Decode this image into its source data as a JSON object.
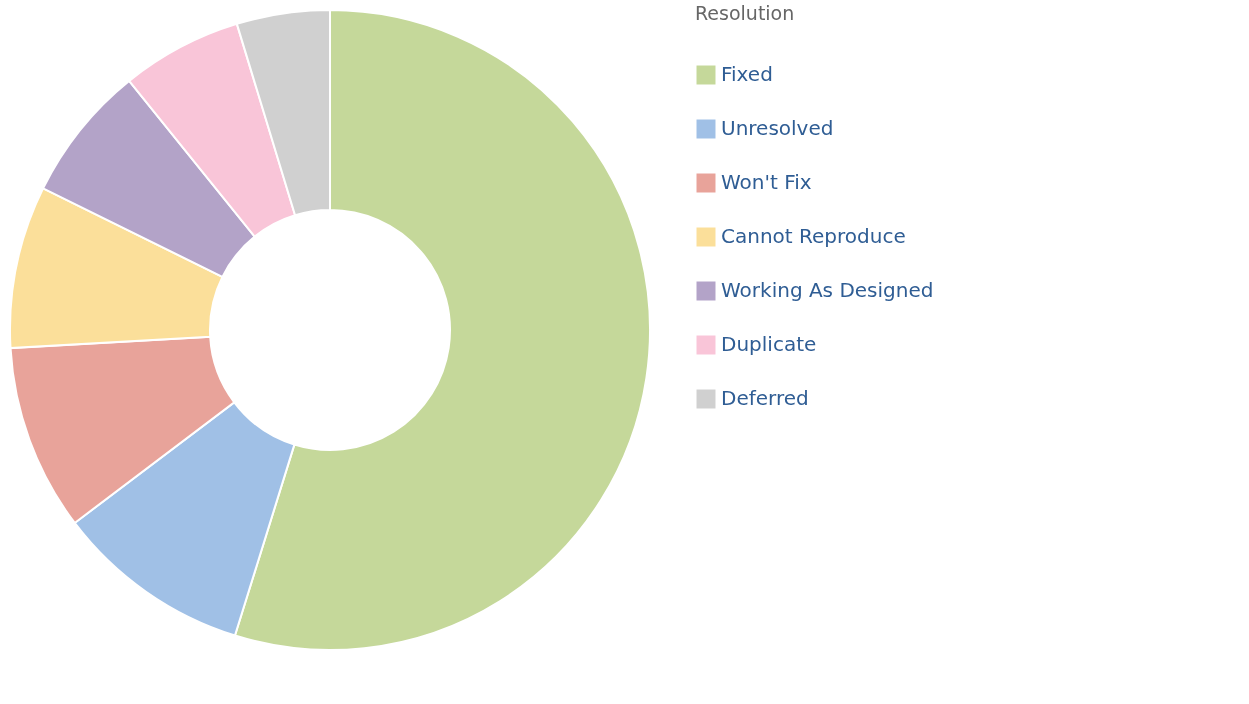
{
  "chart_data": {
    "type": "donut",
    "legend_title": "Resolution",
    "legend": "right",
    "categories": [
      "Fixed",
      "Unresolved",
      "Won't Fix",
      "Cannot Reproduce",
      "Working As Designed",
      "Duplicate",
      "Deferred"
    ],
    "values": [
      54.8,
      9.9,
      9.4,
      8.2,
      6.9,
      6.1,
      4.7
    ],
    "colors": [
      "#c5d89a",
      "#a0c0e6",
      "#e8a39a",
      "#fbdf9a",
      "#b3a3c8",
      "#f9c5d8",
      "#d0d0d0"
    ]
  }
}
